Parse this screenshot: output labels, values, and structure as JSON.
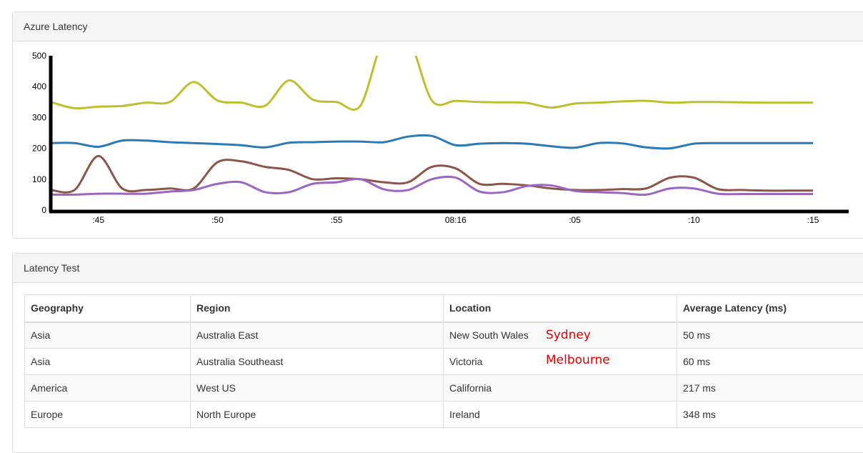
{
  "chart_panel": {
    "title": "Azure Latency"
  },
  "chart_data": {
    "type": "line",
    "x": [
      ":43",
      ":44",
      ":45",
      ":46",
      ":47",
      ":48",
      ":49",
      ":50",
      ":51",
      ":52",
      ":53",
      ":54",
      ":55",
      ":56",
      ":57",
      ":58",
      ":59",
      "08:16",
      ":01",
      ":02",
      ":03",
      ":04",
      ":05",
      ":06",
      ":07",
      ":08",
      ":09",
      ":10",
      ":11",
      ":12",
      ":13",
      ":14",
      ":15"
    ],
    "x_tick_labels": [
      ":45",
      ":50",
      ":55",
      "08:16",
      ":05",
      ":10",
      ":15"
    ],
    "y_tick_labels": [
      "0",
      "100",
      "200",
      "300",
      "400",
      "500"
    ],
    "ylim": [
      0,
      500
    ],
    "grid": false,
    "series": [
      {
        "color": "#bfbf2e",
        "values": [
          350,
          330,
          335,
          337,
          348,
          350,
          415,
          355,
          348,
          338,
          420,
          358,
          350,
          338,
          560,
          560,
          355,
          354,
          350,
          349,
          347,
          332,
          345,
          348,
          352,
          354,
          348,
          350,
          350,
          349,
          348,
          348,
          348
        ]
      },
      {
        "color": "#2a7ab8",
        "values": [
          217,
          217,
          205,
          225,
          225,
          220,
          217,
          214,
          210,
          203,
          218,
          220,
          222,
          222,
          220,
          238,
          240,
          210,
          215,
          217,
          215,
          207,
          202,
          217,
          216,
          203,
          200,
          215,
          217,
          217,
          217,
          217,
          217
        ]
      },
      {
        "color": "#8b5548",
        "values": [
          65,
          65,
          175,
          70,
          65,
          70,
          70,
          155,
          158,
          140,
          130,
          100,
          103,
          100,
          90,
          90,
          140,
          135,
          85,
          85,
          80,
          70,
          65,
          65,
          68,
          70,
          105,
          105,
          68,
          65,
          63,
          63,
          63
        ]
      },
      {
        "color": "#9b66c2",
        "values": [
          50,
          50,
          53,
          53,
          53,
          60,
          65,
          85,
          90,
          58,
          58,
          85,
          90,
          100,
          67,
          65,
          100,
          105,
          60,
          58,
          78,
          80,
          62,
          58,
          55,
          50,
          70,
          70,
          53,
          52,
          52,
          52,
          52
        ]
      }
    ]
  },
  "table_panel": {
    "title": "Latency Test",
    "headers": [
      "Geography",
      "Region",
      "Location",
      "Average Latency (ms)"
    ],
    "rows": [
      [
        "Asia",
        "Australia East",
        "New South Wales",
        "50 ms"
      ],
      [
        "Asia",
        "Australia Southeast",
        "Victoria",
        "60 ms"
      ],
      [
        "America",
        "West US",
        "California",
        "217 ms"
      ],
      [
        "Europe",
        "North Europe",
        "Ireland",
        "348 ms"
      ]
    ],
    "annotations": [
      "Sydney",
      "Melbourne"
    ],
    "annotation_color": "#e00000"
  }
}
